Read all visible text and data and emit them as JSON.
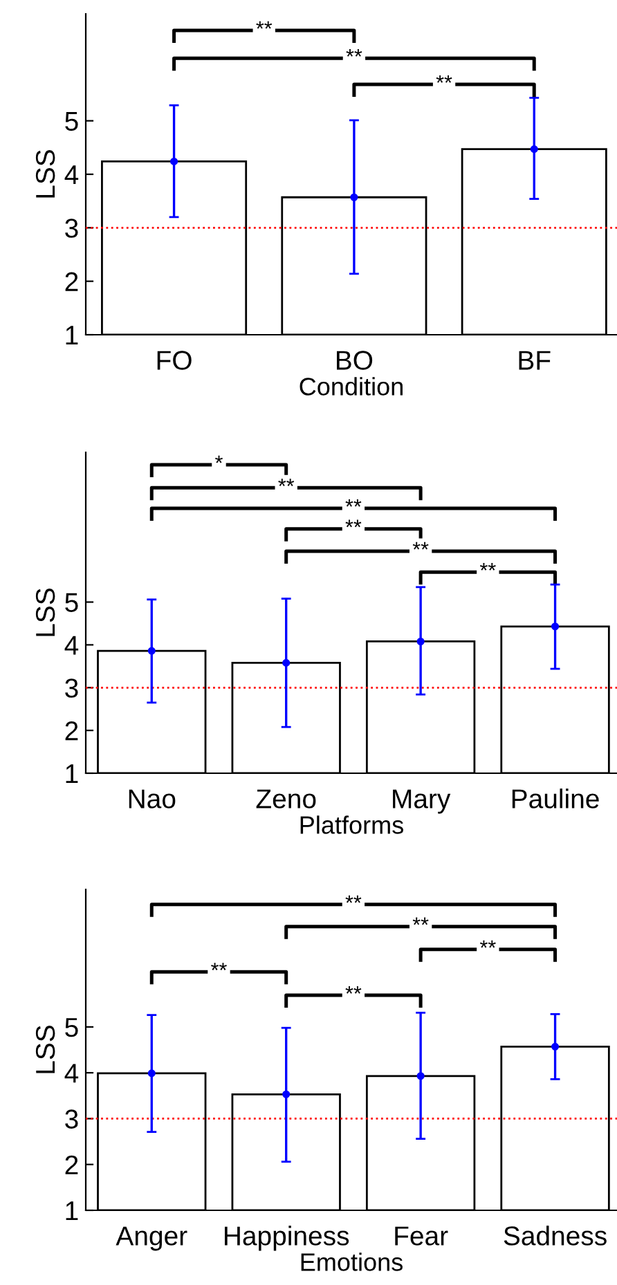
{
  "chart_data": [
    {
      "type": "bar",
      "categories": [
        "FO",
        "BO",
        "BF"
      ],
      "xlabel": "Condition",
      "ylabel": "LSS",
      "series": [
        {
          "type": "bar",
          "color": "#ffffff",
          "values": [
            4.24,
            3.57,
            4.47
          ]
        },
        {
          "type": "scatter",
          "color": "#0000ff",
          "marker": "circle",
          "x": [
            "FO",
            "BO",
            "BF"
          ],
          "values": [
            4.24,
            3.57,
            4.47
          ],
          "errors": [
            [
              3.2,
              5.29
            ],
            [
              2.14,
              5.01
            ],
            [
              3.54,
              5.43
            ]
          ]
        }
      ],
      "ylim": [
        1,
        7
      ],
      "yticks": [
        1,
        2,
        3,
        4,
        5
      ],
      "grid": false,
      "legend": false,
      "ref_lines": [
        {
          "axis": "y",
          "value": 3,
          "color": "#ff0000",
          "line_style": "dotted"
        }
      ],
      "annotations": [
        "**",
        "**",
        "**"
      ]
    },
    {
      "type": "bar",
      "categories": [
        "Nao",
        "Zeno",
        "Mary",
        "Pauline"
      ],
      "xlabel": "Platforms",
      "ylabel": "LSS",
      "series": [
        {
          "type": "bar",
          "color": "#ffffff",
          "values": [
            3.86,
            3.58,
            4.08,
            4.43
          ]
        },
        {
          "type": "scatter",
          "color": "#0000ff",
          "marker": "circle",
          "x": [
            "Nao",
            "Zeno",
            "Mary",
            "Pauline"
          ],
          "values": [
            3.86,
            3.58,
            4.08,
            4.43
          ],
          "errors": [
            [
              2.65,
              5.06
            ],
            [
              2.08,
              5.08
            ],
            [
              2.84,
              5.35
            ],
            [
              3.44,
              5.41
            ]
          ]
        }
      ],
      "ylim": [
        1,
        8.5
      ],
      "yticks": [
        1,
        2,
        3,
        4,
        5
      ],
      "grid": false,
      "legend": false,
      "ref_lines": [
        {
          "axis": "y",
          "value": 3,
          "color": "#ff0000",
          "line_style": "dotted"
        }
      ],
      "annotations": [
        "*",
        "**",
        "**",
        "**",
        "**",
        "**"
      ]
    },
    {
      "type": "bar",
      "categories": [
        "Anger",
        "Happiness",
        "Fear",
        "Sadness"
      ],
      "xlabel": "Emotions",
      "ylabel": "LSS",
      "series": [
        {
          "type": "bar",
          "color": "#ffffff",
          "values": [
            3.99,
            3.53,
            3.93,
            4.57
          ]
        },
        {
          "type": "scatter",
          "color": "#0000ff",
          "marker": "circle",
          "x": [
            "Anger",
            "Happiness",
            "Fear",
            "Sadness"
          ],
          "values": [
            3.99,
            3.53,
            3.93,
            4.57
          ],
          "errors": [
            [
              2.71,
              5.26
            ],
            [
              2.06,
              4.98
            ],
            [
              2.56,
              5.31
            ],
            [
              3.86,
              5.28
            ]
          ]
        }
      ],
      "ylim": [
        1,
        8
      ],
      "yticks": [
        1,
        2,
        3,
        4,
        5
      ],
      "grid": false,
      "legend": false,
      "ref_lines": [
        {
          "axis": "y",
          "value": 3,
          "color": "#ff0000",
          "line_style": "dotted"
        }
      ],
      "annotations": [
        "**",
        "**",
        "**",
        "**",
        "**"
      ]
    }
  ]
}
